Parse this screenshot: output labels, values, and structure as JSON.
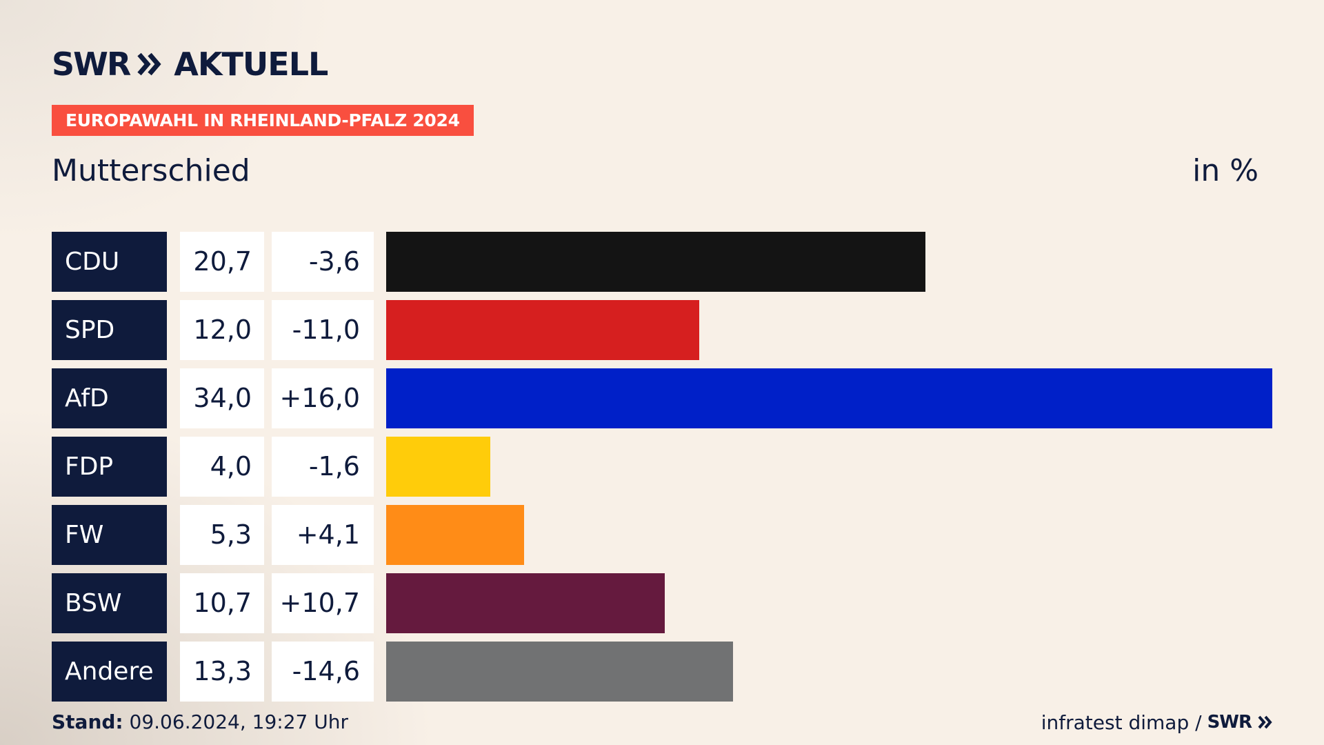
{
  "header": {
    "logo_swr": "SWR",
    "logo_suffix": "AKTUELL",
    "badge": "EUROPAWAHL IN RHEINLAND-PFALZ 2024",
    "place": "Mutterschied",
    "unit": "in %"
  },
  "chart_data": {
    "type": "bar",
    "orientation": "horizontal",
    "categories": [
      "CDU",
      "SPD",
      "AfD",
      "FDP",
      "FW",
      "BSW",
      "Andere"
    ],
    "values": [
      20.7,
      12.0,
      34.0,
      4.0,
      5.3,
      10.7,
      13.3
    ],
    "values_label": [
      "20,7",
      "12,0",
      "34,0",
      "4,0",
      "5,3",
      "10,7",
      "13,3"
    ],
    "differences": [
      -3.6,
      -11.0,
      16.0,
      -1.6,
      4.1,
      10.7,
      -14.6
    ],
    "differences_label": [
      "-3,6",
      "-11,0",
      "+16,0",
      "-1,6",
      "+4,1",
      "+10,7",
      "-14,6"
    ],
    "colors": [
      "#141414",
      "#d61f1f",
      "#0020c8",
      "#ffcc0a",
      "#ff8c17",
      "#651a3e",
      "#717273"
    ],
    "xlim": [
      0,
      34
    ],
    "grid": false
  },
  "footer": {
    "stand_label": "Stand:",
    "stand_value": "09.06.2024, 19:27 Uhr",
    "source": "infratest dimap /",
    "source_logo": "SWR"
  },
  "colors": {
    "navy": "#0f1b3c",
    "badge": "#f94f3f",
    "background": "#f8f0e7"
  }
}
